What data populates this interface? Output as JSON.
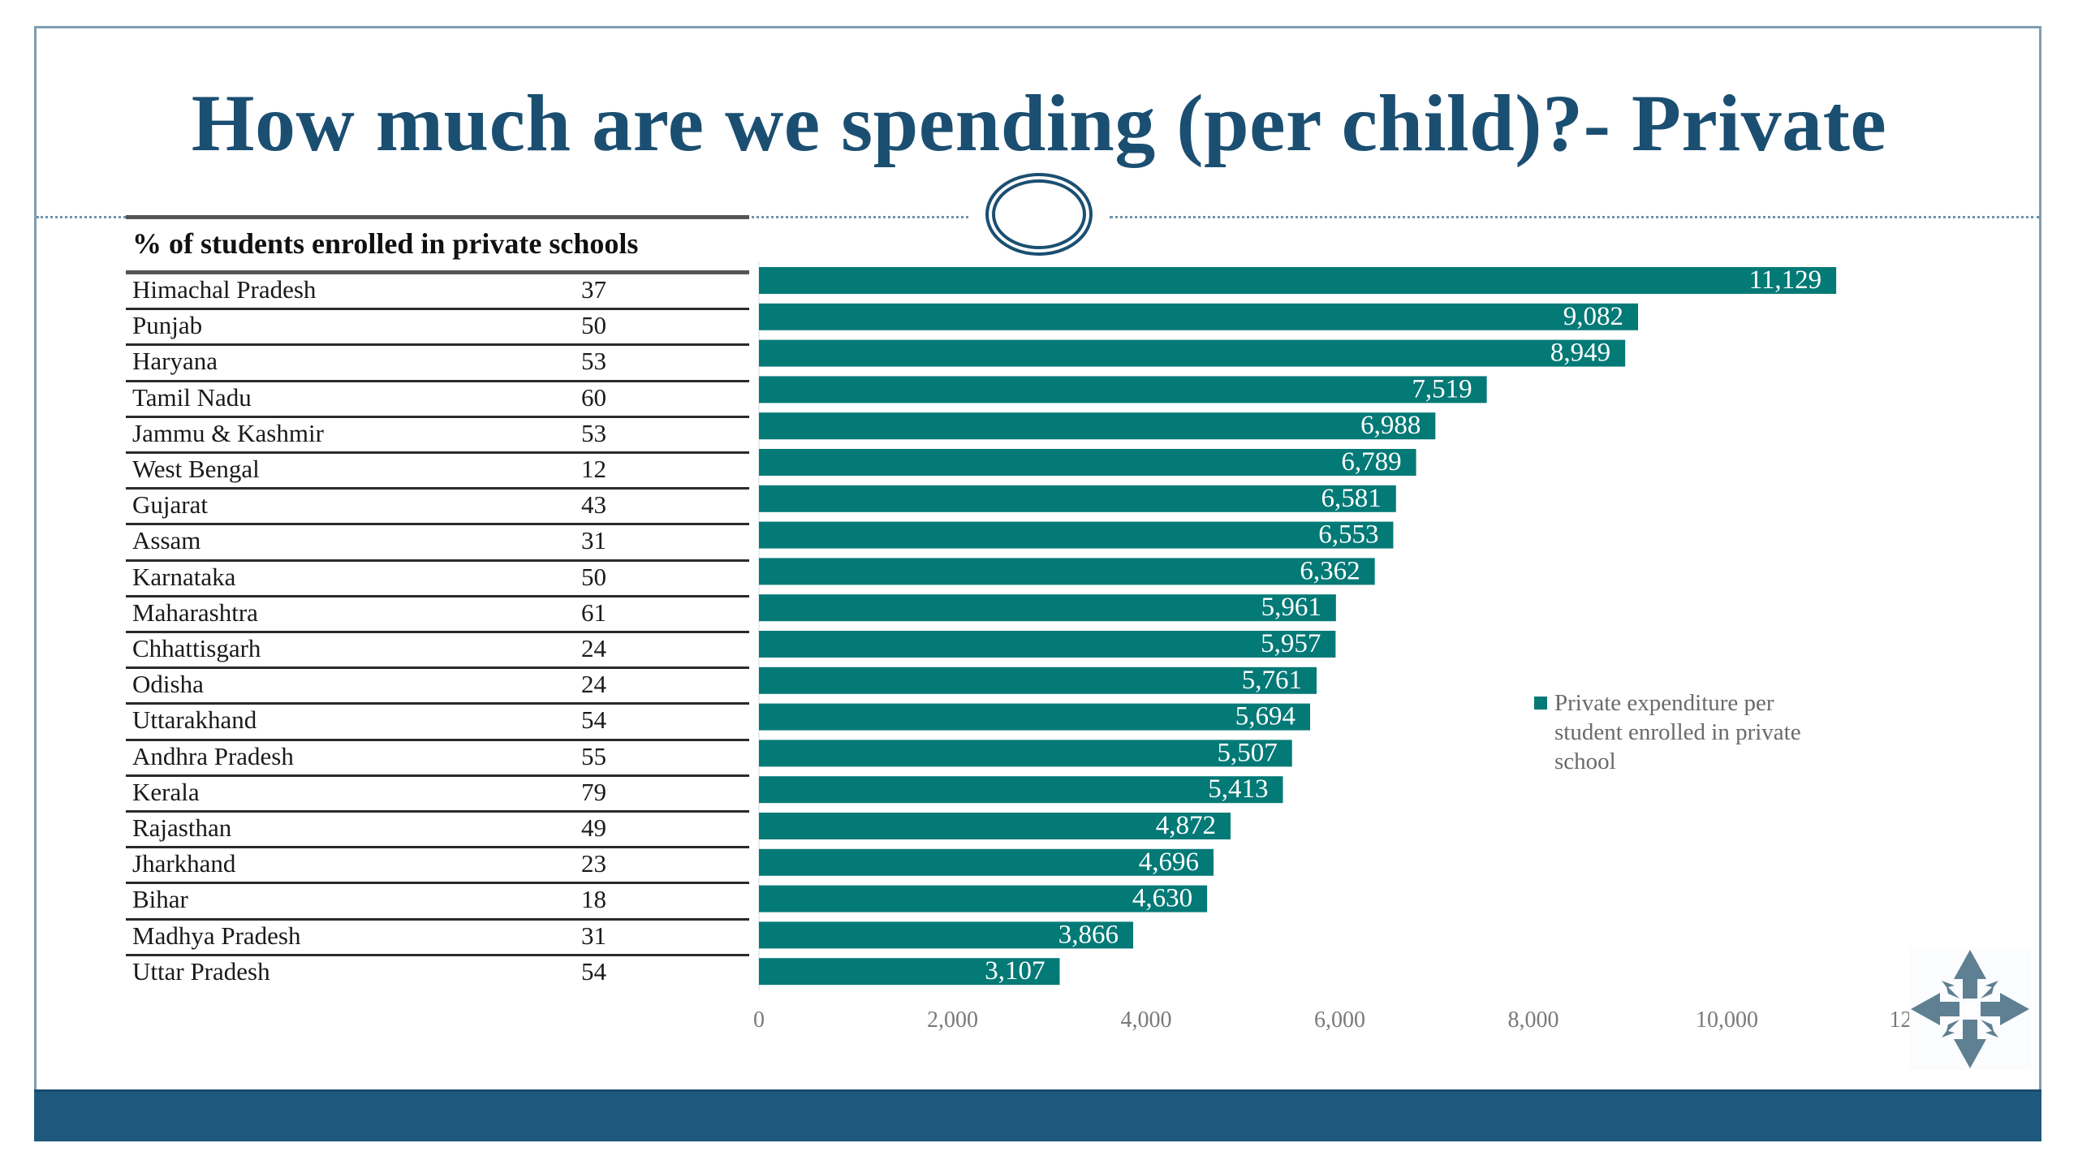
{
  "slide": {
    "title": "How much are we spending (per child)?- Private",
    "colors": {
      "title": "#1b4f72",
      "bar": "#047a77",
      "frame": "#7f9db2",
      "footer_band": "#1e587c",
      "ornament": "#1b4f72",
      "move_icon": "#5f7f92"
    }
  },
  "table": {
    "header": "% of  students enrolled in private schools",
    "rows": [
      {
        "state": "Himachal Pradesh",
        "pct": "37"
      },
      {
        "state": "Punjab",
        "pct": "50"
      },
      {
        "state": "Haryana",
        "pct": "53"
      },
      {
        "state": "Tamil Nadu",
        "pct": "60"
      },
      {
        "state": "Jammu & Kashmir",
        "pct": "53"
      },
      {
        "state": "West Bengal",
        "pct": "12"
      },
      {
        "state": "Gujarat",
        "pct": "43"
      },
      {
        "state": "Assam",
        "pct": "31"
      },
      {
        "state": "Karnataka",
        "pct": "50"
      },
      {
        "state": "Maharashtra",
        "pct": "61"
      },
      {
        "state": "Chhattisgarh",
        "pct": "24"
      },
      {
        "state": "Odisha",
        "pct": "24"
      },
      {
        "state": "Uttarakhand",
        "pct": "54"
      },
      {
        "state": "Andhra Pradesh",
        "pct": "55"
      },
      {
        "state": "Kerala",
        "pct": "79"
      },
      {
        "state": "Rajasthan",
        "pct": "49"
      },
      {
        "state": "Jharkhand",
        "pct": "23"
      },
      {
        "state": "Bihar",
        "pct": "18"
      },
      {
        "state": "Madhya Pradesh",
        "pct": "31"
      },
      {
        "state": "Uttar Pradesh",
        "pct": "54"
      }
    ]
  },
  "chart_data": {
    "type": "bar",
    "orientation": "horizontal",
    "title": "",
    "xlabel": "",
    "ylabel": "",
    "categories": [
      "Himachal Pradesh",
      "Punjab",
      "Haryana",
      "Tamil Nadu",
      "Jammu & Kashmir",
      "West Bengal",
      "Gujarat",
      "Assam",
      "Karnataka",
      "Maharashtra",
      "Chhattisgarh",
      "Odisha",
      "Uttarakhand",
      "Andhra Pradesh",
      "Kerala",
      "Rajasthan",
      "Jharkhand",
      "Bihar",
      "Madhya Pradesh",
      "Uttar Pradesh"
    ],
    "series": [
      {
        "name": "Private expenditure per student enrolled in private school",
        "values": [
          11129,
          9082,
          8949,
          7519,
          6988,
          6789,
          6581,
          6553,
          6362,
          5961,
          5957,
          5761,
          5694,
          5507,
          5413,
          4872,
          4696,
          4630,
          3866,
          3107
        ],
        "labels": [
          "11,129",
          "9,082",
          "8,949",
          "7,519",
          "6,988",
          "6,789",
          "6,581",
          "6,553",
          "6,362",
          "5,961",
          "5,957",
          "5,761",
          "5,694",
          "5,507",
          "5,413",
          "4,872",
          "4,696",
          "4,630",
          "3,866",
          "3,107"
        ]
      }
    ],
    "xlim": [
      0,
      12000
    ],
    "xticks": [
      0,
      2000,
      4000,
      6000,
      8000,
      10000,
      12000
    ],
    "xtick_labels": [
      "0",
      "2,000",
      "4,000",
      "6,000",
      "8,000",
      "10,000",
      "12,000"
    ],
    "grid": false,
    "data_labels": "inside-end",
    "legend": {
      "entries": [
        "Private expenditure per student enrolled in private school"
      ],
      "placement": "right"
    }
  },
  "icons": {
    "ornament": "double-ellipse-ornament",
    "move": "move-arrows-icon"
  }
}
